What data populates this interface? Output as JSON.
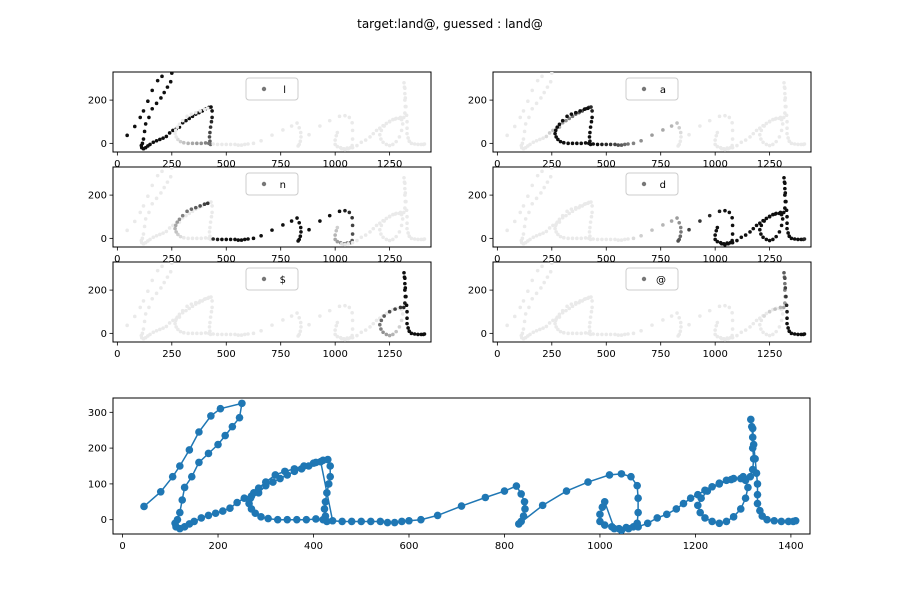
{
  "figure": {
    "title": "target:land@, guessed : land@"
  },
  "chart_data": [
    {
      "type": "scatter",
      "legend": "l",
      "legend_location": "upper center",
      "xlim": [
        -20,
        1440
      ],
      "ylim": [
        -40,
        330
      ],
      "xticks": [
        0,
        250,
        500,
        750,
        1000,
        1250
      ],
      "yticks": [
        0,
        200
      ],
      "colormap": "gray_r",
      "point_weights": "stroke_l"
    },
    {
      "type": "scatter",
      "legend": "a",
      "legend_location": "upper center",
      "xlim": [
        -20,
        1440
      ],
      "ylim": [
        -40,
        330
      ],
      "xticks": [
        0,
        250,
        500,
        750,
        1000,
        1250
      ],
      "yticks": [
        0,
        200
      ],
      "colormap": "gray_r",
      "point_weights": "stroke_a"
    },
    {
      "type": "scatter",
      "legend": "n",
      "legend_location": "upper center",
      "xlim": [
        -20,
        1440
      ],
      "ylim": [
        -40,
        330
      ],
      "xticks": [
        0,
        250,
        500,
        750,
        1000,
        1250
      ],
      "yticks": [
        0,
        200
      ],
      "colormap": "gray_r",
      "point_weights": "stroke_n"
    },
    {
      "type": "scatter",
      "legend": "d",
      "legend_location": "upper center",
      "xlim": [
        -20,
        1440
      ],
      "ylim": [
        -40,
        330
      ],
      "xticks": [
        0,
        250,
        500,
        750,
        1000,
        1250
      ],
      "yticks": [
        0,
        200
      ],
      "colormap": "gray_r",
      "point_weights": "stroke_d"
    },
    {
      "type": "scatter",
      "legend": "$",
      "legend_location": "upper center",
      "xlim": [
        -20,
        1440
      ],
      "ylim": [
        -40,
        330
      ],
      "xticks": [
        0,
        250,
        500,
        750,
        1000,
        1250
      ],
      "yticks": [
        0,
        200
      ],
      "colormap": "gray_r",
      "point_weights": "stroke_dollar"
    },
    {
      "type": "scatter",
      "legend": "@",
      "legend_location": "upper center",
      "xlim": [
        -20,
        1440
      ],
      "ylim": [
        -40,
        330
      ],
      "xticks": [
        0,
        250,
        500,
        750,
        1000,
        1250
      ],
      "yticks": [
        0,
        200
      ],
      "colormap": "gray_r",
      "point_weights": "stroke_at"
    },
    {
      "type": "line",
      "markers": true,
      "color": "#1f77b4",
      "xlim": [
        -20,
        1440
      ],
      "ylim": [
        -40,
        340
      ],
      "xticks": [
        0,
        200,
        400,
        600,
        800,
        1000,
        1200,
        1400
      ],
      "yticks": [
        0,
        100,
        200,
        300
      ],
      "pen_down_points": [
        [
          45,
          37
        ],
        [
          80,
          78
        ],
        [
          105,
          120
        ],
        [
          120,
          150
        ],
        [
          140,
          195
        ],
        [
          160,
          245
        ],
        [
          185,
          290
        ],
        [
          205,
          310
        ],
        [
          250,
          325
        ],
        [
          245,
          285
        ],
        [
          230,
          260
        ],
        [
          215,
          235
        ],
        [
          200,
          210
        ],
        [
          180,
          185
        ],
        [
          160,
          160
        ],
        [
          145,
          120
        ],
        [
          130,
          90
        ],
        [
          125,
          55
        ],
        [
          120,
          20
        ],
        [
          115,
          0
        ],
        [
          110,
          -10
        ],
        [
          112,
          -20
        ],
        [
          120,
          -25
        ],
        [
          130,
          -20
        ],
        [
          140,
          -12
        ],
        [
          150,
          -5
        ],
        [
          165,
          5
        ],
        [
          180,
          12
        ],
        [
          195,
          18
        ],
        [
          210,
          24
        ],
        [
          225,
          32
        ],
        [
          240,
          48
        ],
        [
          255,
          60
        ],
        [
          270,
          66
        ],
        [
          285,
          75
        ],
        [
          300,
          95
        ],
        [
          315,
          105
        ],
        [
          330,
          115
        ],
        [
          345,
          125
        ],
        [
          360,
          135
        ],
        [
          375,
          142
        ],
        [
          390,
          150
        ],
        [
          405,
          160
        ],
        [
          420,
          166
        ],
        [
          430,
          168
        ],
        [
          435,
          150
        ],
        [
          435,
          120
        ],
        [
          432,
          100
        ],
        [
          428,
          75
        ],
        [
          425,
          50
        ],
        [
          423,
          30
        ],
        [
          425,
          10
        ],
        [
          428,
          -5
        ],
        [
          420,
          0
        ],
        [
          405,
          2
        ],
        [
          385,
          0
        ],
        [
          365,
          0
        ],
        [
          345,
          0
        ],
        [
          325,
          0
        ],
        [
          305,
          3
        ],
        [
          290,
          8
        ],
        [
          278,
          18
        ],
        [
          270,
          30
        ],
        [
          265,
          45
        ],
        [
          268,
          60
        ],
        [
          275,
          75
        ],
        [
          285,
          88
        ],
        [
          300,
          105
        ],
        [
          320,
          125
        ],
        [
          340,
          135
        ],
        [
          360,
          142
        ],
        [
          380,
          150
        ],
        [
          400,
          158
        ],
        [
          415,
          162
        ],
        [
          440,
          -3
        ],
        [
          460,
          -5
        ],
        [
          480,
          -5
        ],
        [
          500,
          -5
        ],
        [
          520,
          -5
        ],
        [
          540,
          -5
        ],
        [
          555,
          -8
        ],
        [
          570,
          -8
        ],
        [
          585,
          -5
        ],
        [
          600,
          -3
        ],
        [
          625,
          0
        ],
        [
          660,
          12
        ],
        [
          710,
          38
        ],
        [
          760,
          62
        ],
        [
          800,
          80
        ],
        [
          825,
          94
        ],
        [
          835,
          72
        ],
        [
          842,
          50
        ],
        [
          843,
          30
        ],
        [
          840,
          10
        ],
        [
          835,
          -5
        ],
        [
          830,
          -12
        ],
        [
          880,
          40
        ],
        [
          930,
          80
        ],
        [
          975,
          105
        ],
        [
          1020,
          125
        ],
        [
          1045,
          128
        ],
        [
          1065,
          120
        ],
        [
          1078,
          95
        ],
        [
          1080,
          60
        ],
        [
          1080,
          20
        ],
        [
          1078,
          -10
        ],
        [
          1070,
          -20
        ],
        [
          1055,
          -22
        ],
        [
          1040,
          -25
        ],
        [
          1025,
          -20
        ],
        [
          1010,
          -15
        ],
        [
          1000,
          -5
        ],
        [
          1000,
          15
        ],
        [
          1005,
          35
        ],
        [
          1010,
          50
        ],
        [
          1030,
          -25
        ],
        [
          1045,
          -30
        ],
        [
          1060,
          -25
        ],
        [
          1080,
          -20
        ],
        [
          1100,
          -10
        ],
        [
          1120,
          5
        ],
        [
          1140,
          15
        ],
        [
          1160,
          30
        ],
        [
          1175,
          45
        ],
        [
          1190,
          60
        ],
        [
          1205,
          70
        ],
        [
          1220,
          82
        ],
        [
          1235,
          92
        ],
        [
          1250,
          102
        ],
        [
          1265,
          110
        ],
        [
          1280,
          115
        ],
        [
          1295,
          115
        ],
        [
          1305,
          110
        ],
        [
          1310,
          90
        ],
        [
          1305,
          60
        ],
        [
          1295,
          30
        ],
        [
          1280,
          8
        ],
        [
          1265,
          -5
        ],
        [
          1250,
          -10
        ],
        [
          1235,
          -5
        ],
        [
          1220,
          5
        ],
        [
          1210,
          20
        ],
        [
          1205,
          40
        ],
        [
          1212,
          60
        ],
        [
          1225,
          80
        ],
        [
          1250,
          100
        ],
        [
          1275,
          112
        ],
        [
          1300,
          120
        ],
        [
          1315,
          120
        ],
        [
          1320,
          140
        ],
        [
          1322,
          170
        ],
        [
          1320,
          200
        ],
        [
          1320,
          230
        ],
        [
          1318,
          260
        ],
        [
          1316,
          280
        ],
        [
          1320,
          255
        ],
        [
          1322,
          210
        ],
        [
          1325,
          170
        ],
        [
          1328,
          130
        ],
        [
          1330,
          100
        ],
        [
          1330,
          70
        ],
        [
          1330,
          45
        ],
        [
          1335,
          25
        ],
        [
          1340,
          10
        ],
        [
          1350,
          0
        ],
        [
          1365,
          -3
        ],
        [
          1380,
          -5
        ],
        [
          1395,
          -5
        ],
        [
          1405,
          -5
        ],
        [
          1410,
          -3
        ]
      ]
    }
  ]
}
